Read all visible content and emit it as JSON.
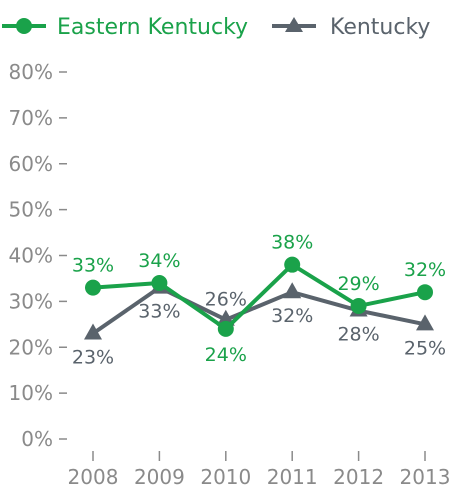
{
  "chart_data": {
    "type": "line",
    "categories": [
      "2008",
      "2009",
      "2010",
      "2011",
      "2012",
      "2013"
    ],
    "series": [
      {
        "name": "Eastern Kentucky",
        "values": [
          33,
          34,
          24,
          38,
          29,
          32
        ],
        "labels": [
          "33%",
          "34%",
          "24%",
          "38%",
          "29%",
          "32%"
        ],
        "color": "#1aa24a",
        "marker": "circle"
      },
      {
        "name": "Kentucky",
        "values": [
          23,
          33,
          26,
          32,
          28,
          25
        ],
        "labels": [
          "23%",
          "33%",
          "26%",
          "32%",
          "28%",
          "25%"
        ],
        "color": "#5a636c",
        "marker": "triangle"
      }
    ],
    "y_ticks": [
      "0%",
      "10%",
      "20%",
      "30%",
      "40%",
      "50%",
      "60%",
      "70%",
      "80%"
    ],
    "ylim": [
      0,
      80
    ],
    "grid": false,
    "legend_position": "top"
  }
}
